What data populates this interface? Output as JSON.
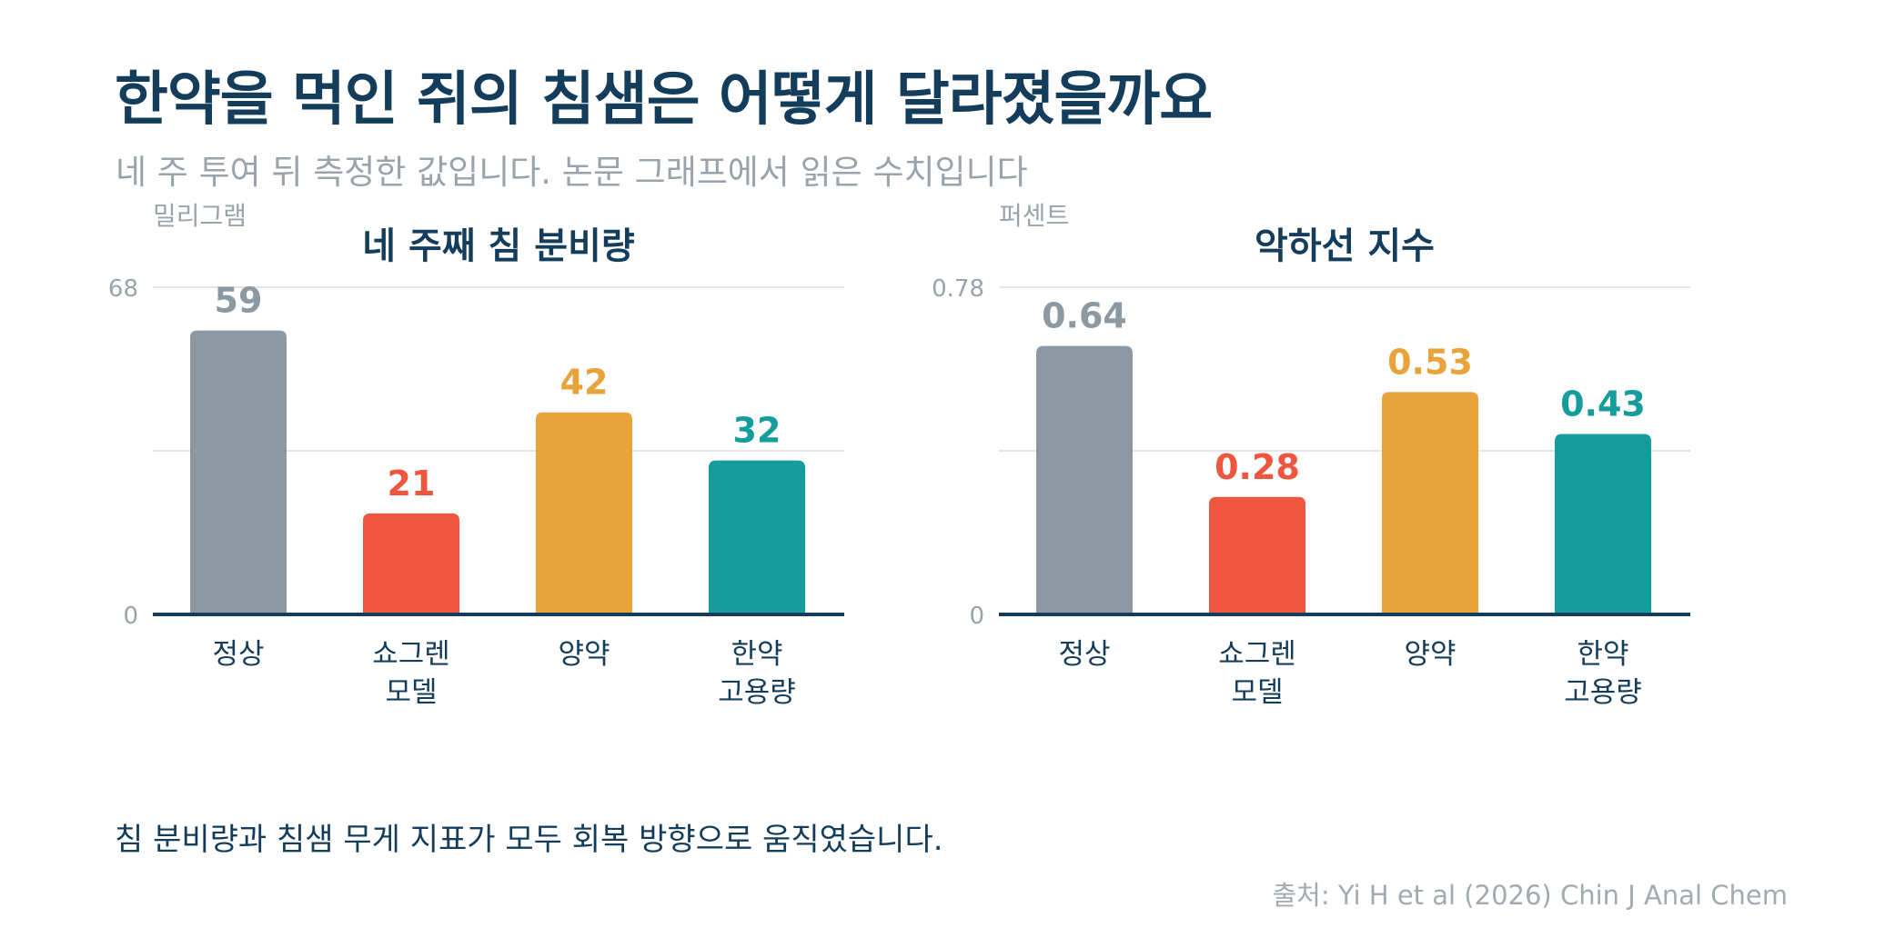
{
  "title": "한약을 먹인 쥐의 침샘은 어떻게 달라졌을까요",
  "subtitle": "네 주 투여 뒤 측정한 값입니다. 논문 그래프에서 읽은 수치입니다",
  "takeaway": "침 분비량과 침샘 무게 지표가 모두 회복 방향으로 움직였습니다.",
  "source": "출처: Yi H et al (2026) Chin J Anal Chem",
  "colors": {
    "title": "#143d5c",
    "axis": "#143d5c",
    "muted": "#9aa3ab",
    "grid": "#e6e6e6"
  },
  "chart_data": [
    {
      "type": "bar",
      "title": "네 주째 침 분비량",
      "ylabel": "밀리그램",
      "categories": [
        "정상",
        "쇼그렌\n모델",
        "양약",
        "한약\n고용량"
      ],
      "values": [
        59,
        21,
        42,
        32
      ],
      "value_labels": [
        "59",
        "21",
        "42",
        "32"
      ],
      "colors": [
        "#8c99a3",
        "#ee563f",
        "#e8a33b",
        "#159c9c"
      ],
      "ylim": [
        0,
        68
      ],
      "y_ticks": [
        "0",
        "68"
      ],
      "grid": true
    },
    {
      "type": "bar",
      "title": "악하선 지수",
      "ylabel": "퍼센트",
      "categories": [
        "정상",
        "쇼그렌\n모델",
        "양약",
        "한약\n고용량"
      ],
      "values": [
        0.64,
        0.28,
        0.53,
        0.43
      ],
      "value_labels": [
        "0.64",
        "0.28",
        "0.53",
        "0.43"
      ],
      "colors": [
        "#8c99a3",
        "#ee563f",
        "#e8a33b",
        "#159c9c"
      ],
      "ylim": [
        0,
        0.78
      ],
      "y_ticks": [
        "0",
        "0.78"
      ],
      "grid": true
    }
  ]
}
